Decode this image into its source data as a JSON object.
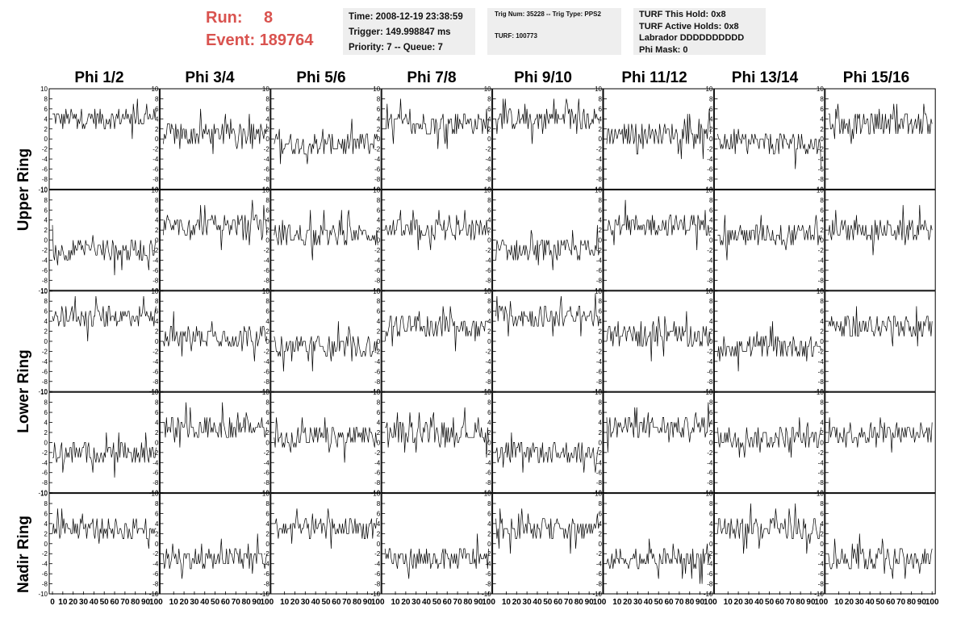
{
  "run": {
    "run_label": "Run:",
    "run_value": "8",
    "event_label": "Event:",
    "event_value": "189764"
  },
  "info1": {
    "time": "Time: 2008-12-19 23:38:59",
    "trigger": "Trigger: 149.998847 ms",
    "priority": "Priority: 7 -- Queue: 7"
  },
  "info2": {
    "trig": "Trig Num: 35228 -- Trig Type: PPS2",
    "turf": "TURF: 100773"
  },
  "info3": {
    "hold": "TURF This Hold: 0x8",
    "active": "TURF Active Holds: 0x8",
    "labrador": "Labrador DDDDDDDDDD",
    "phimask": "Phi Mask: 0"
  },
  "columns": [
    "Phi 1/2",
    "Phi 3/4",
    "Phi 5/6",
    "Phi 7/8",
    "Phi 9/10",
    "Phi 11/12",
    "Phi 13/14",
    "Phi 15/16"
  ],
  "rows": [
    "Upper Ring",
    "Lower Ring",
    "Nadir Ring"
  ],
  "colors": {
    "accent": "#d9534f",
    "box_bg": "#eeeeee",
    "trace": "#000000"
  },
  "chart_data": {
    "type": "line",
    "layout": "grid 5 rows x 8 columns",
    "x_ticks": [
      "0",
      "10",
      "20",
      "30",
      "40",
      "50",
      "60",
      "70",
      "80",
      "90",
      "100"
    ],
    "xlim": [
      0,
      100
    ],
    "ylim": [
      -10,
      10
    ],
    "y_tick_labels": [
      "10",
      "8",
      "6",
      "4",
      "2",
      "0",
      "-2",
      "-4",
      "-6",
      "-8",
      "-10"
    ],
    "panel_baselines": [
      [
        4,
        1,
        -1,
        3,
        4,
        1,
        -1,
        3
      ],
      [
        -2,
        3,
        1,
        2,
        -2,
        3,
        1,
        2
      ],
      [
        5,
        1,
        -1,
        3,
        5,
        1,
        -1,
        3
      ],
      [
        -2,
        3,
        1,
        2,
        -2,
        3,
        1,
        2
      ],
      [
        3,
        -3,
        3,
        -3,
        3,
        -3,
        3,
        -3
      ]
    ]
  }
}
